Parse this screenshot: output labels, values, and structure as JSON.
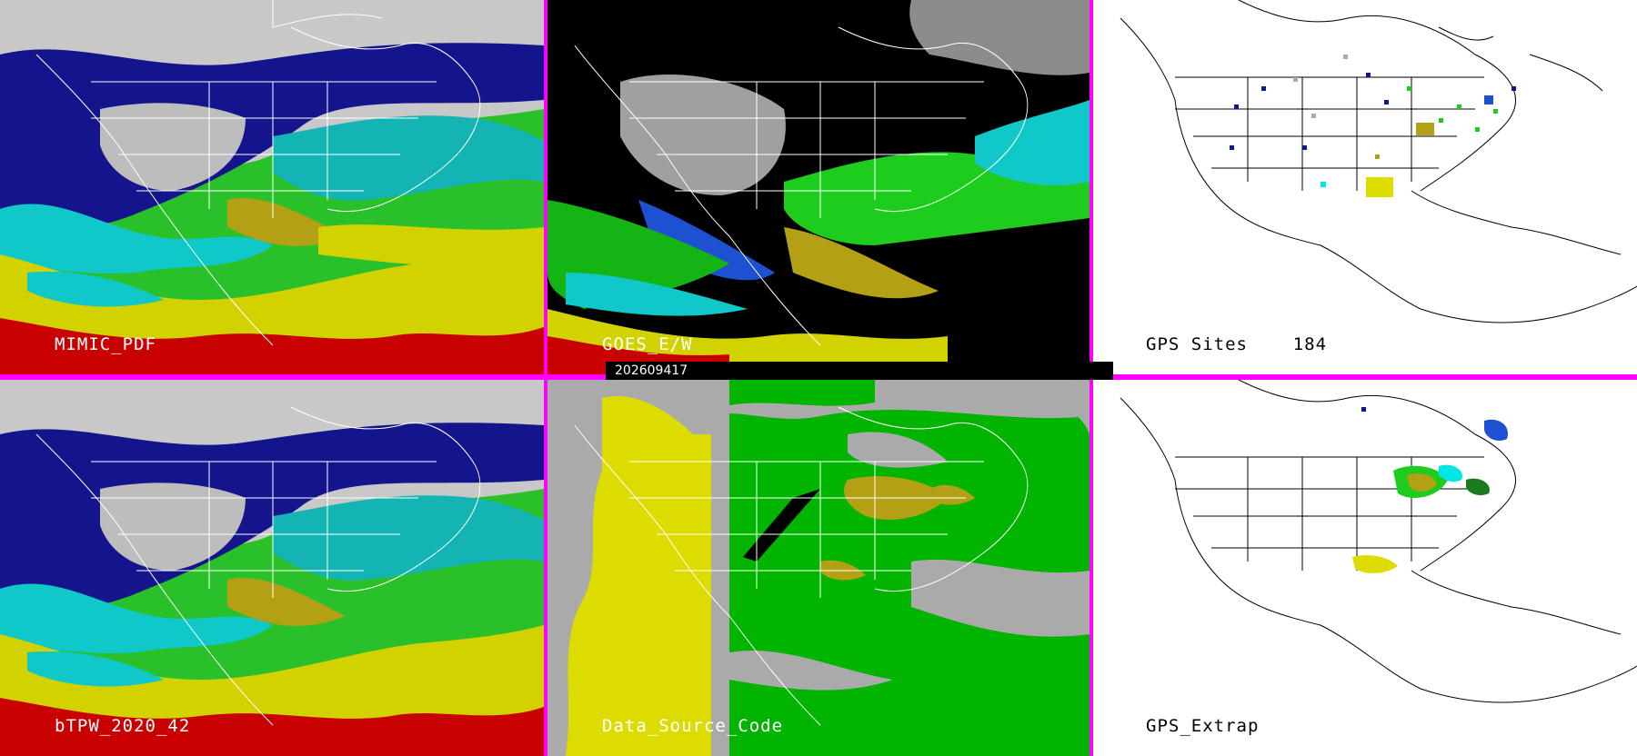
{
  "panels": {
    "mimic": {
      "label": "MIMIC_PDF"
    },
    "goes": {
      "label": "GOES_E/W"
    },
    "gps_sites": {
      "label": "GPS Sites",
      "count": "184"
    },
    "btpw": {
      "label": "bTPW_2020_42"
    },
    "data_source": {
      "label": "Data_Source_Code"
    },
    "gps_extrap": {
      "label": "GPS_Extrap"
    }
  },
  "timestamp": "202609417",
  "colors": {
    "divider": "#ff00ff",
    "dry": "#b4b4b4",
    "low": "#0a1a8c",
    "mid_blue": "#1e50d2",
    "cyan": "#00e6e6",
    "teal": "#14b4b4",
    "green": "#1ecc1e",
    "yellow": "#d2d200",
    "olive": "#b4a014",
    "red": "#c80000",
    "source_yellow": "#dcdc00",
    "source_green": "#00b400",
    "source_gray": "#aaaaaa"
  }
}
